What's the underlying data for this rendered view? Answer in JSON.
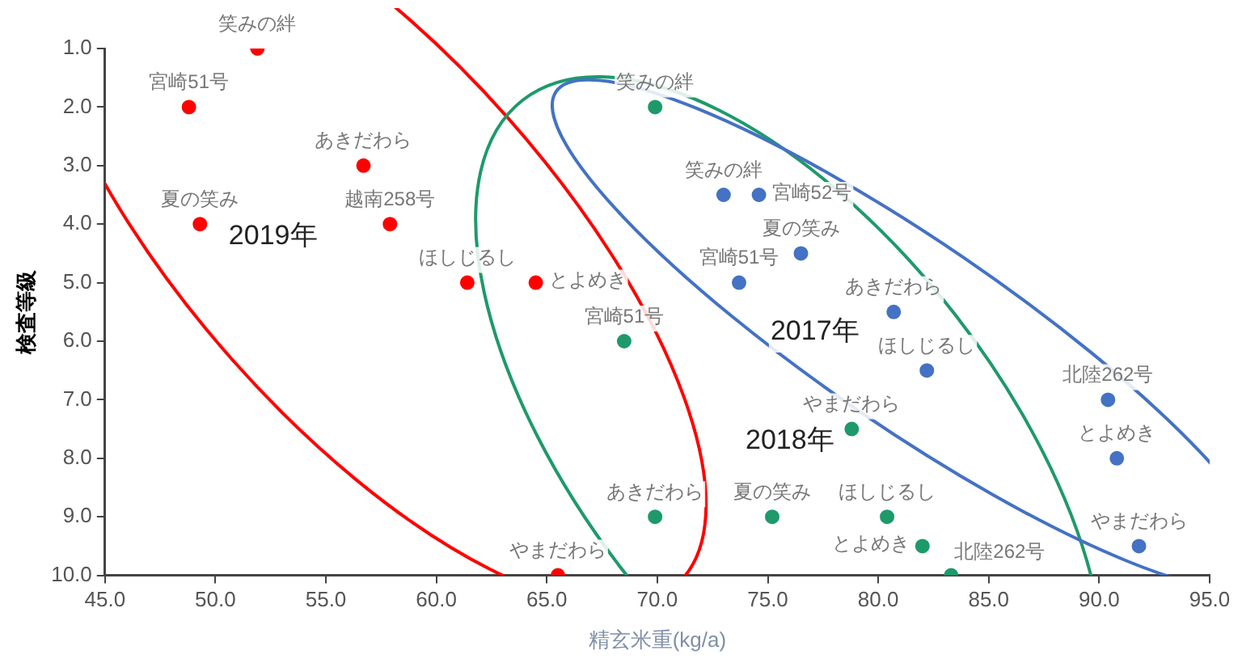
{
  "chart_data": {
    "type": "scatter",
    "xlabel": "精玄米重(kg/a)",
    "ylabel": "検査等級",
    "xlim": [
      45,
      95
    ],
    "xticks": [
      {
        "value": 45,
        "label": "45.0"
      },
      {
        "value": 50,
        "label": "50.0"
      },
      {
        "value": 55,
        "label": "55.0"
      },
      {
        "value": 60,
        "label": "60.0"
      },
      {
        "value": 65,
        "label": "65.0"
      },
      {
        "value": 70,
        "label": "70.0"
      },
      {
        "value": 75,
        "label": "75.0"
      },
      {
        "value": 80,
        "label": "80.0"
      },
      {
        "value": 85,
        "label": "85.0"
      },
      {
        "value": 90,
        "label": "90.0"
      },
      {
        "value": 95,
        "label": "95.0"
      }
    ],
    "ylim": [
      10,
      1
    ],
    "yticks": [
      {
        "value": 1,
        "label": "1.0"
      },
      {
        "value": 2,
        "label": "2.0"
      },
      {
        "value": 3,
        "label": "3.0"
      },
      {
        "value": 4,
        "label": "4.0"
      },
      {
        "value": 5,
        "label": "5.0"
      },
      {
        "value": 6,
        "label": "6.0"
      },
      {
        "value": 7,
        "label": "7.0"
      },
      {
        "value": 8,
        "label": "8.0"
      },
      {
        "value": 9,
        "label": "9.0"
      },
      {
        "value": 10,
        "label": "10.0"
      }
    ],
    "grid": false,
    "legend": false,
    "marker": "circle",
    "series": [
      {
        "name": "2019年",
        "color": "#ff0000",
        "x": [
          48.8,
          51.9,
          56.7,
          49.3,
          57.9,
          61.4,
          64.5,
          65.5
        ],
        "values": [
          2,
          1,
          3,
          4,
          4,
          5,
          5,
          10
        ]
      },
      {
        "name": "2018年",
        "color": "#1e9a6a",
        "x": [
          69.9,
          68.5,
          69.9,
          75.2,
          80.4,
          78.8,
          82.0,
          83.3
        ],
        "values": [
          2,
          6,
          9,
          9,
          9,
          7.5,
          9.5,
          10
        ]
      },
      {
        "name": "2017年",
        "color": "#4472c4",
        "x": [
          73.0,
          74.6,
          76.5,
          73.7,
          80.7,
          82.2,
          90.4,
          90.8,
          91.8
        ],
        "values": [
          3.5,
          3.5,
          4.5,
          5,
          5.5,
          6.5,
          7,
          8,
          9.5
        ]
      }
    ],
    "annotations": [
      {
        "text": "宮崎51号",
        "x": 48.8,
        "y": 2
      },
      {
        "text": "笑みの絆",
        "x": 51.9,
        "y": 1
      },
      {
        "text": "あきだわら",
        "x": 56.7,
        "y": 3
      },
      {
        "text": "夏の笑み",
        "x": 49.3,
        "y": 4
      },
      {
        "text": "越南258号",
        "x": 57.9,
        "y": 4
      },
      {
        "text": "ほしじるし",
        "x": 61.4,
        "y": 5
      },
      {
        "text": "とよめき",
        "x": 64.5,
        "y": 5
      },
      {
        "text": "やまだわら",
        "x": 65.5,
        "y": 10
      },
      {
        "text": "笑みの絆",
        "x": 69.9,
        "y": 2
      },
      {
        "text": "宮崎51号",
        "x": 68.5,
        "y": 6
      },
      {
        "text": "あきだわら",
        "x": 69.9,
        "y": 9
      },
      {
        "text": "夏の笑み",
        "x": 75.2,
        "y": 9
      },
      {
        "text": "ほしじるし",
        "x": 80.4,
        "y": 9
      },
      {
        "text": "やまだわら",
        "x": 78.8,
        "y": 7.5
      },
      {
        "text": "とよめき",
        "x": 82.0,
        "y": 9.5
      },
      {
        "text": "北陸262号",
        "x": 83.3,
        "y": 10
      },
      {
        "text": "笑みの絆",
        "x": 73.0,
        "y": 3.5
      },
      {
        "text": "宮崎52号",
        "x": 74.6,
        "y": 3.5
      },
      {
        "text": "夏の笑み",
        "x": 76.5,
        "y": 4.5
      },
      {
        "text": "宮崎51号",
        "x": 73.7,
        "y": 5
      },
      {
        "text": "あきだわら",
        "x": 80.7,
        "y": 5.5
      },
      {
        "text": "ほしじるし",
        "x": 82.2,
        "y": 6.5
      },
      {
        "text": "北陸262号",
        "x": 90.4,
        "y": 7
      },
      {
        "text": "とよめき",
        "x": 90.8,
        "y": 8
      },
      {
        "text": "やまだわら",
        "x": 91.8,
        "y": 9.5
      }
    ]
  }
}
